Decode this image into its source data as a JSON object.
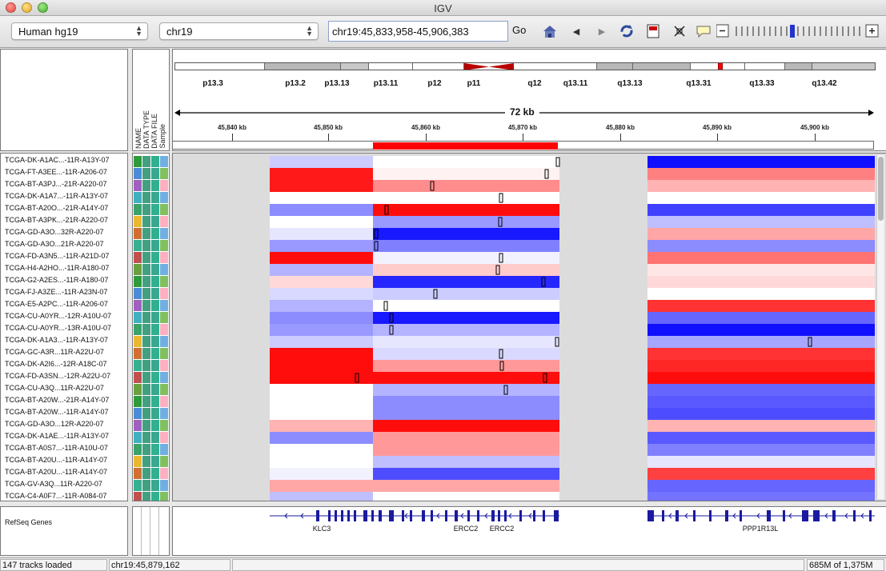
{
  "window": {
    "title": "IGV"
  },
  "toolbar": {
    "genome": "Human hg19",
    "chromosome": "chr19",
    "locus": "chr19:45,833,958-45,906,383",
    "go_label": "Go",
    "icons": [
      "home-icon",
      "back-icon",
      "forward-icon",
      "refresh-icon",
      "roi-icon",
      "resize-icon",
      "popup-text-icon"
    ]
  },
  "attribute_headers": [
    "NAME",
    "DATA TYPE",
    "DATA FILE",
    "Sample"
  ],
  "ideogram": {
    "bands": [
      "p13.3",
      "p13.2",
      "p13.13",
      "p13.11",
      "p12",
      "p11",
      "q12",
      "q13.11",
      "q13.13",
      "q13.31",
      "q13.33",
      "q13.42"
    ]
  },
  "ruler": {
    "span_label": "72 kb",
    "ticks": [
      "45,840 kb",
      "45,850 kb",
      "45,860 kb",
      "45,870 kb",
      "45,880 kb",
      "45,890 kb",
      "45,900 kb"
    ]
  },
  "tracks": [
    "TCGA-DK-A1AC...-11R-A13Y-07",
    "TCGA-FT-A3EE...-11R-A206-07",
    "TCGA-BT-A3PJ...-21R-A220-07",
    "TCGA-DK-A1A7...-11R-A13Y-07",
    "TCGA-BT-A20O...-21R-A14Y-07",
    "TCGA-BT-A3PK...-21R-A220-07",
    "TCGA-GD-A3O...32R-A220-07",
    "TCGA-GD-A3O...21R-A220-07",
    "TCGA-FD-A3N5...-11R-A21D-07",
    "TCGA-H4-A2HO...-11R-A180-07",
    "TCGA-G2-A2ES...-11R-A180-07",
    "TCGA-FJ-A3ZE...-11R-A23N-07",
    "TCGA-E5-A2PC...-11R-A206-07",
    "TCGA-CU-A0YR...-12R-A10U-07",
    "TCGA-CU-A0YR...-13R-A10U-07",
    "TCGA-DK-A1A3...-11R-A13Y-07",
    "TCGA-GC-A3R...11R-A22U-07",
    "TCGA-DK-A2I6...-12R-A18C-07",
    "TCGA-FD-A3SN...-12R-A22U-07",
    "TCGA-CU-A3Q...11R-A22U-07",
    "TCGA-BT-A20W...-21R-A14Y-07",
    "TCGA-BT-A20W...-11R-A14Y-07",
    "TCGA-GD-A3O...12R-A220-07",
    "TCGA-DK-A1AE...-11R-A13Y-07",
    "TCGA-BT-A0S7...-11R-A10U-07",
    "TCGA-BT-A20U...-11R-A14Y-07",
    "TCGA-BT-A20U...-11R-A14Y-07",
    "TCGA-GV-A3Q...11R-A220-07",
    "TCGA-C4-A0F7...-11R-A084-07"
  ],
  "heatmap_values": [
    [
      0.0,
      -0.2,
      0.0,
      -0.95
    ],
    [
      0.0,
      0.9,
      0.05,
      0.5
    ],
    [
      0.0,
      0.9,
      0.45,
      0.3
    ],
    [
      0.0,
      0.0,
      0.0,
      0.0
    ],
    [
      0.0,
      -0.45,
      0.95,
      -0.75
    ],
    [
      0.0,
      0.0,
      -0.4,
      -0.25
    ],
    [
      0.0,
      -0.1,
      -0.9,
      0.35
    ],
    [
      0.0,
      -0.4,
      -0.5,
      -0.45
    ],
    [
      0.0,
      0.95,
      -0.05,
      0.55
    ],
    [
      0.0,
      -0.3,
      0.2,
      0.1
    ],
    [
      0.0,
      0.15,
      -0.85,
      0.15
    ],
    [
      0.0,
      -0.15,
      -0.2,
      0.0
    ],
    [
      0.0,
      -0.3,
      0.0,
      0.8
    ],
    [
      0.0,
      -0.45,
      -0.9,
      -0.6
    ],
    [
      0.0,
      -0.4,
      -0.3,
      -0.98
    ],
    [
      0.0,
      -0.2,
      -0.1,
      -0.35
    ],
    [
      0.0,
      0.95,
      -0.15,
      0.8
    ],
    [
      0.0,
      0.95,
      0.4,
      0.85
    ],
    [
      0.0,
      0.95,
      0.95,
      0.95
    ],
    [
      0.0,
      0.0,
      -0.3,
      -0.6
    ],
    [
      0.0,
      0.0,
      -0.45,
      -0.65
    ],
    [
      0.0,
      0.0,
      -0.45,
      -0.7
    ],
    [
      0.0,
      0.3,
      0.95,
      0.3
    ],
    [
      0.0,
      -0.45,
      0.4,
      -0.65
    ],
    [
      0.0,
      0.0,
      0.4,
      -0.5
    ],
    [
      0.0,
      0.0,
      -0.25,
      -0.1
    ],
    [
      0.0,
      -0.05,
      -0.7,
      0.75
    ],
    [
      0.0,
      0.35,
      0.35,
      -0.6
    ],
    [
      0.0,
      -0.25,
      0.0,
      -0.55
    ]
  ],
  "feature_track": {
    "label": "RefSeq Genes",
    "genes": [
      "KLC3",
      "ERCC2",
      "ERCC2",
      "PPP1R13L"
    ]
  },
  "status": {
    "tracks_loaded": "147 tracks loaded",
    "position": "chr19:45,879,162",
    "memory": "685M of 1,375M"
  },
  "colors": {
    "high": "#ff0000",
    "low": "#1010ff",
    "neutral": "#ffffff",
    "empty": "#dcdcdc"
  }
}
